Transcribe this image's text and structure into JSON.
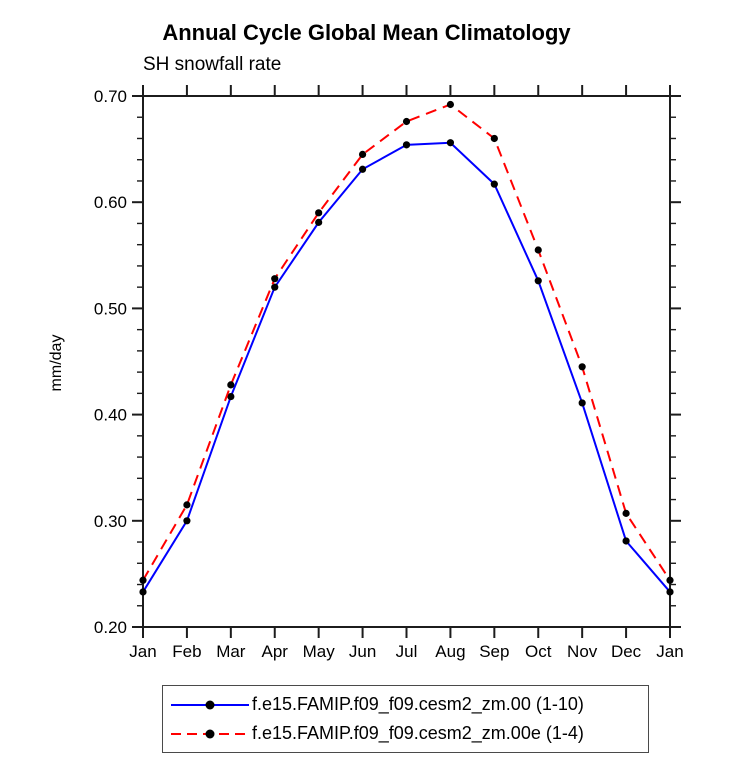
{
  "chart_data": {
    "type": "line",
    "title": "Annual Cycle Global Mean Climatology",
    "subtitle": "SH snowfall rate",
    "ylabel": "mm/day",
    "xlabel": "",
    "categories": [
      "Jan",
      "Feb",
      "Mar",
      "Apr",
      "May",
      "Jun",
      "Jul",
      "Aug",
      "Sep",
      "Oct",
      "Nov",
      "Dec",
      "Jan"
    ],
    "ylim": [
      0.2,
      0.7
    ],
    "y_major_step": 0.1,
    "y_minor_step": 0.02,
    "y_tick_labels": [
      "0.20",
      "0.30",
      "0.40",
      "0.50",
      "0.60",
      "0.70"
    ],
    "grid": false,
    "legend_position": "bottom-box",
    "axis_color": "#1c1c1c",
    "marker_color": "#000000",
    "series": [
      {
        "name": "f.e15.FAMIP.f09_f09.cesm2_zm.00 (1-10)",
        "color": "#0000ff",
        "style": "solid",
        "marker": "filled-circle",
        "values": [
          0.233,
          0.3,
          0.417,
          0.52,
          0.581,
          0.631,
          0.654,
          0.656,
          0.617,
          0.526,
          0.411,
          0.281,
          0.233
        ]
      },
      {
        "name": "f.e15.FAMIP.f09_f09.cesm2_zm.00e (1-4)",
        "color": "#ff0000",
        "style": "dashed",
        "marker": "filled-circle",
        "values": [
          0.244,
          0.315,
          0.428,
          0.528,
          0.59,
          0.645,
          0.676,
          0.692,
          0.66,
          0.555,
          0.445,
          0.307,
          0.244
        ]
      }
    ]
  }
}
